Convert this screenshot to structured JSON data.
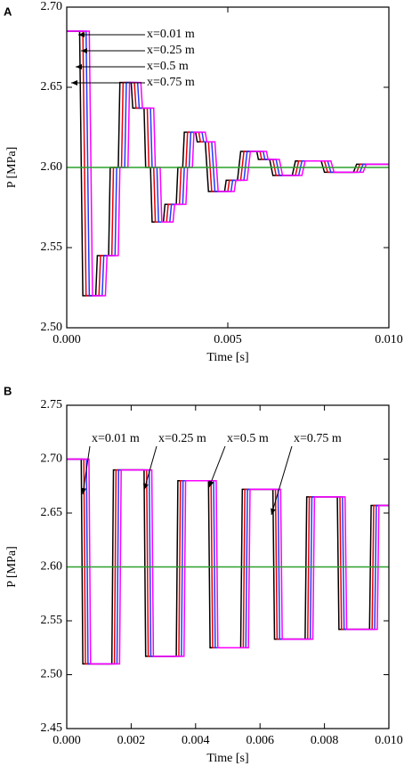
{
  "chart_data": [
    {
      "type": "line",
      "panel_label": "A",
      "xlabel": "Time [s]",
      "ylabel": "P [MPa]",
      "xlim": [
        0,
        0.01
      ],
      "ylim": [
        2.5,
        2.7
      ],
      "xticks": [
        {
          "value": 0,
          "label": "0.000"
        },
        {
          "value": 0.005,
          "label": "0.005"
        },
        {
          "value": 0.01,
          "label": "0.010"
        }
      ],
      "yticks": [
        {
          "value": 2.5,
          "label": "2.50"
        },
        2.55,
        {
          "value": 2.6,
          "label": "2.60"
        },
        2.65,
        {
          "value": 2.7,
          "label": "2.70"
        }
      ],
      "annotations": [
        "x=0.01 m",
        "x=0.25 m",
        "x=0.5 m",
        "x=0.75 m"
      ],
      "series": [
        {
          "color": "#000000",
          "x": [
            0,
            0.0004,
            0.0005,
            0.0009,
            0.00095,
            0.0013,
            0.00135,
            0.0016,
            0.00165,
            0.002,
            0.00205,
            0.0024,
            0.00245,
            0.0026,
            0.00265,
            0.003,
            0.00305,
            0.0034,
            0.00345,
            0.0036,
            0.00365,
            0.004,
            0.00405,
            0.0043,
            0.0044,
            0.0049,
            0.00495,
            0.0053,
            0.0054,
            0.0059,
            0.00595,
            0.0063,
            0.0064,
            0.007,
            0.0071,
            0.0079,
            0.008,
            0.0089,
            0.009,
            0.01
          ],
          "values": [
            2.685,
            2.685,
            2.52,
            2.52,
            2.545,
            2.545,
            2.6,
            2.6,
            2.653,
            2.653,
            2.637,
            2.637,
            2.6,
            2.6,
            2.566,
            2.566,
            2.577,
            2.577,
            2.6,
            2.6,
            2.622,
            2.622,
            2.616,
            2.616,
            2.585,
            2.585,
            2.592,
            2.592,
            2.61,
            2.61,
            2.605,
            2.605,
            2.595,
            2.595,
            2.604,
            2.604,
            2.597,
            2.597,
            2.602,
            2.602
          ]
        },
        {
          "color": "#e8000b",
          "x": [
            0,
            0.0005,
            0.0006,
            0.001,
            0.00105,
            0.0014,
            0.00145,
            0.0017,
            0.00175,
            0.0021,
            0.00215,
            0.0025,
            0.00255,
            0.0027,
            0.00275,
            0.0031,
            0.00315,
            0.0035,
            0.00355,
            0.0037,
            0.00375,
            0.0041,
            0.00415,
            0.0044,
            0.0045,
            0.005,
            0.00505,
            0.0054,
            0.0055,
            0.006,
            0.00605,
            0.0064,
            0.0065,
            0.0071,
            0.0072,
            0.008,
            0.0081,
            0.009,
            0.0091,
            0.01
          ],
          "values": [
            2.685,
            2.685,
            2.52,
            2.52,
            2.545,
            2.545,
            2.6,
            2.6,
            2.653,
            2.653,
            2.637,
            2.637,
            2.6,
            2.6,
            2.566,
            2.566,
            2.577,
            2.577,
            2.6,
            2.6,
            2.622,
            2.622,
            2.616,
            2.616,
            2.585,
            2.585,
            2.592,
            2.592,
            2.61,
            2.61,
            2.605,
            2.605,
            2.595,
            2.595,
            2.604,
            2.604,
            2.597,
            2.597,
            2.602,
            2.602
          ]
        },
        {
          "color": "#1f3bff",
          "x": [
            0,
            0.0006,
            0.0007,
            0.0011,
            0.00115,
            0.0015,
            0.00155,
            0.0018,
            0.00185,
            0.0022,
            0.00225,
            0.0026,
            0.00265,
            0.0028,
            0.00285,
            0.0032,
            0.00325,
            0.0036,
            0.00365,
            0.0038,
            0.00385,
            0.0042,
            0.00425,
            0.0045,
            0.0046,
            0.0051,
            0.00515,
            0.0055,
            0.0056,
            0.0061,
            0.00615,
            0.0065,
            0.0066,
            0.0072,
            0.0073,
            0.0081,
            0.0082,
            0.0091,
            0.0092,
            0.01
          ],
          "values": [
            2.685,
            2.685,
            2.52,
            2.52,
            2.545,
            2.545,
            2.6,
            2.6,
            2.653,
            2.653,
            2.637,
            2.637,
            2.6,
            2.6,
            2.566,
            2.566,
            2.577,
            2.577,
            2.6,
            2.6,
            2.622,
            2.622,
            2.616,
            2.616,
            2.585,
            2.585,
            2.592,
            2.592,
            2.61,
            2.61,
            2.605,
            2.605,
            2.595,
            2.595,
            2.604,
            2.604,
            2.597,
            2.597,
            2.602,
            2.602
          ]
        },
        {
          "color": "#ff00ff",
          "x": [
            0,
            0.0007,
            0.0008,
            0.0012,
            0.00125,
            0.0016,
            0.00165,
            0.0019,
            0.00195,
            0.0023,
            0.00235,
            0.0027,
            0.00275,
            0.0029,
            0.00295,
            0.0033,
            0.00335,
            0.0037,
            0.00375,
            0.0039,
            0.00395,
            0.0043,
            0.00435,
            0.0046,
            0.0047,
            0.0052,
            0.00525,
            0.0056,
            0.0057,
            0.0062,
            0.00625,
            0.0066,
            0.0067,
            0.0073,
            0.0074,
            0.0082,
            0.0083,
            0.0092,
            0.0093,
            0.01
          ],
          "values": [
            2.685,
            2.685,
            2.52,
            2.52,
            2.545,
            2.545,
            2.6,
            2.6,
            2.653,
            2.653,
            2.637,
            2.637,
            2.6,
            2.6,
            2.566,
            2.566,
            2.577,
            2.577,
            2.6,
            2.6,
            2.622,
            2.622,
            2.616,
            2.616,
            2.585,
            2.585,
            2.592,
            2.592,
            2.61,
            2.61,
            2.605,
            2.605,
            2.595,
            2.595,
            2.604,
            2.604,
            2.597,
            2.597,
            2.602,
            2.602
          ]
        },
        {
          "color": "#2ca02c",
          "x": [
            0,
            0.01
          ],
          "values": [
            2.6,
            2.6
          ]
        }
      ]
    },
    {
      "type": "line",
      "panel_label": "B",
      "xlabel": "Time [s]",
      "ylabel": "P [MPa]",
      "xlim": [
        0,
        0.01
      ],
      "ylim": [
        2.45,
        2.75
      ],
      "xticks": [
        {
          "value": 0,
          "label": "0.000"
        },
        {
          "value": 0.002,
          "label": "0.002"
        },
        {
          "value": 0.004,
          "label": "0.004"
        },
        {
          "value": 0.006,
          "label": "0.006"
        },
        {
          "value": 0.008,
          "label": "0.008"
        },
        {
          "value": 0.01,
          "label": "0.010"
        }
      ],
      "yticks": [
        2.45,
        {
          "value": 2.5,
          "label": "2.50"
        },
        2.55,
        {
          "value": 2.6,
          "label": "2.60"
        },
        2.65,
        {
          "value": 2.7,
          "label": "2.70"
        },
        2.75
      ],
      "annotations": [
        "x=0.01 m",
        "x=0.25 m",
        "x=0.5 m",
        "x=0.75 m"
      ],
      "series": [
        {
          "color": "#000000",
          "x": [
            0,
            0.00045,
            0.0005,
            0.0014,
            0.00145,
            0.0024,
            0.00245,
            0.0034,
            0.00345,
            0.0044,
            0.00445,
            0.0054,
            0.00545,
            0.0064,
            0.00645,
            0.0074,
            0.00745,
            0.0084,
            0.00845,
            0.0094,
            0.00945,
            0.01
          ],
          "values": [
            2.7,
            2.7,
            2.51,
            2.51,
            2.69,
            2.69,
            2.517,
            2.517,
            2.68,
            2.68,
            2.525,
            2.525,
            2.672,
            2.672,
            2.533,
            2.533,
            2.665,
            2.665,
            2.542,
            2.542,
            2.657,
            2.657
          ]
        },
        {
          "color": "#e8000b",
          "x": [
            0,
            0.00053,
            0.00058,
            0.00148,
            0.00153,
            0.00248,
            0.00253,
            0.00348,
            0.00353,
            0.00448,
            0.00453,
            0.00548,
            0.00553,
            0.00648,
            0.00653,
            0.00748,
            0.00753,
            0.00848,
            0.00853,
            0.00948,
            0.00953,
            0.01
          ],
          "values": [
            2.7,
            2.7,
            2.51,
            2.51,
            2.69,
            2.69,
            2.517,
            2.517,
            2.68,
            2.68,
            2.525,
            2.525,
            2.672,
            2.672,
            2.533,
            2.533,
            2.665,
            2.665,
            2.542,
            2.542,
            2.657,
            2.657
          ]
        },
        {
          "color": "#1f3bff",
          "x": [
            0,
            0.00061,
            0.00066,
            0.00156,
            0.00161,
            0.00256,
            0.00261,
            0.00356,
            0.00361,
            0.00456,
            0.00461,
            0.00556,
            0.00561,
            0.00656,
            0.00661,
            0.00756,
            0.00761,
            0.00856,
            0.00861,
            0.00956,
            0.00961,
            0.01
          ],
          "values": [
            2.7,
            2.7,
            2.51,
            2.51,
            2.69,
            2.69,
            2.517,
            2.517,
            2.68,
            2.68,
            2.525,
            2.525,
            2.672,
            2.672,
            2.533,
            2.533,
            2.665,
            2.665,
            2.542,
            2.542,
            2.657,
            2.657
          ]
        },
        {
          "color": "#ff00ff",
          "x": [
            0,
            0.00069,
            0.00074,
            0.00164,
            0.00169,
            0.00264,
            0.00269,
            0.00364,
            0.00369,
            0.00464,
            0.00469,
            0.00564,
            0.00569,
            0.00664,
            0.00669,
            0.00764,
            0.00769,
            0.00864,
            0.00869,
            0.00964,
            0.00969,
            0.01
          ],
          "values": [
            2.7,
            2.7,
            2.51,
            2.51,
            2.69,
            2.69,
            2.517,
            2.517,
            2.68,
            2.68,
            2.525,
            2.525,
            2.672,
            2.672,
            2.533,
            2.533,
            2.665,
            2.665,
            2.542,
            2.542,
            2.657,
            2.657
          ]
        },
        {
          "color": "#2ca02c",
          "x": [
            0,
            0.01
          ],
          "values": [
            2.6,
            2.6
          ]
        }
      ]
    }
  ]
}
